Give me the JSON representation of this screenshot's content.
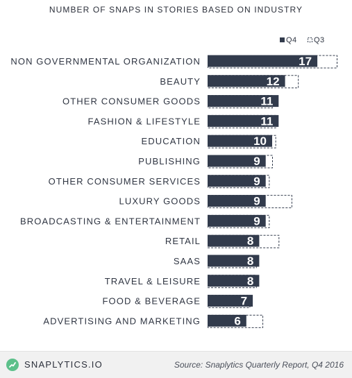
{
  "chart_data": {
    "type": "bar",
    "orientation": "horizontal",
    "title": "NUMBER OF SNAPS IN STORIES BASED ON INDUSTRY",
    "categories": [
      "NON GOVERNMENTAL ORGANIZATION",
      "BEAUTY",
      "OTHER CONSUMER GOODS",
      "FASHION & LIFESTYLE",
      "EDUCATION",
      "PUBLISHING",
      "OTHER CONSUMER SERVICES",
      "LUXURY GOODS",
      "BROADCASTING & ENTERTAINMENT",
      "RETAIL",
      "SAAS",
      "TRAVEL & LEISURE",
      "FOOD & BEVERAGE",
      "ADVERTISING AND MARKETING"
    ],
    "series": [
      {
        "name": "Q4",
        "values": [
          17,
          12,
          11,
          11,
          10,
          9,
          9,
          9,
          9,
          8,
          8,
          8,
          7,
          6
        ],
        "style": "filled"
      },
      {
        "name": "Q3",
        "values": [
          20,
          14,
          10,
          10.5,
          10.5,
          10,
          9.5,
          13,
          9.5,
          11,
          7.5,
          7.5,
          6.5,
          8.5
        ],
        "style": "dashed-outline"
      }
    ],
    "data_labels_series": "Q4",
    "xlim": [
      0,
      20
    ],
    "grid": false,
    "legend_position": "top-right",
    "colors": {
      "q4_fill": "#323b4c",
      "q3_outline": "#323b4c",
      "label_text": "#2f3542"
    }
  },
  "footer": {
    "brand": "SNAPLYTICS.IO",
    "source": "Source: Snaplytics Quarterly Report, Q4 2016",
    "brand_icon": "snaplytics-logo-icon",
    "brand_color": "#5cc08a"
  }
}
